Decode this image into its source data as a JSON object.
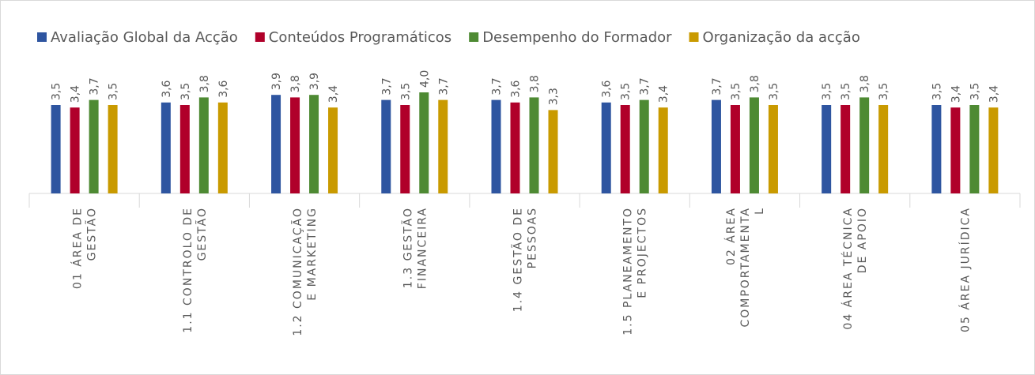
{
  "chart_data": {
    "type": "bar",
    "categories": [
      [
        "01 ÁREA DE",
        "GESTÃO"
      ],
      [
        "1.1 CONTROLO DE",
        "GESTÃO"
      ],
      [
        "1.2 COMUNICAÇÃO",
        "E MARKETING"
      ],
      [
        "1.3 GESTÃO",
        "FINANCEIRA"
      ],
      [
        "1.4 GESTÃO DE",
        "PESSOAS"
      ],
      [
        "1.5 PLANEAMENTO",
        "E PROJECTOS"
      ],
      [
        "02 ÁREA",
        "COMPORTAMENTA",
        "L"
      ],
      [
        "04 ÁREA TÉCNICA",
        "DE APOIO"
      ],
      [
        "05 ÁREA JURÍDICA"
      ]
    ],
    "series": [
      {
        "name": "Avaliação Global da Acção",
        "color": "#2e55a0",
        "values": [
          3.5,
          3.6,
          3.9,
          3.7,
          3.7,
          3.6,
          3.7,
          3.5,
          3.5
        ],
        "value_labels": [
          "3,5",
          "3,6",
          "3,9",
          "3,7",
          "3,7",
          "3,6",
          "3,7",
          "3,5",
          "3,5"
        ]
      },
      {
        "name": "Conteúdos Programáticos",
        "color": "#b0002a",
        "values": [
          3.4,
          3.5,
          3.8,
          3.5,
          3.6,
          3.5,
          3.5,
          3.5,
          3.4
        ],
        "value_labels": [
          "3,4",
          "3,5",
          "3,8",
          "3,5",
          "3,6",
          "3,5",
          "3,5",
          "3,5",
          "3,4"
        ]
      },
      {
        "name": "Desempenho do Formador",
        "color": "#4e8a33",
        "values": [
          3.7,
          3.8,
          3.9,
          4.0,
          3.8,
          3.7,
          3.8,
          3.8,
          3.5
        ],
        "value_labels": [
          "3,7",
          "3,8",
          "3,9",
          "4,0",
          "3,8",
          "3,7",
          "3,8",
          "3,8",
          "3,5"
        ]
      },
      {
        "name": "Organização da acção",
        "color": "#c99a00",
        "values": [
          3.5,
          3.6,
          3.4,
          3.7,
          3.3,
          3.4,
          3.5,
          3.5,
          3.4
        ],
        "value_labels": [
          "3,5",
          "3,6",
          "3,4",
          "3,7",
          "3,3",
          "3,4",
          "3,5",
          "3,5",
          "3,4"
        ]
      }
    ],
    "legend": "top"
  }
}
